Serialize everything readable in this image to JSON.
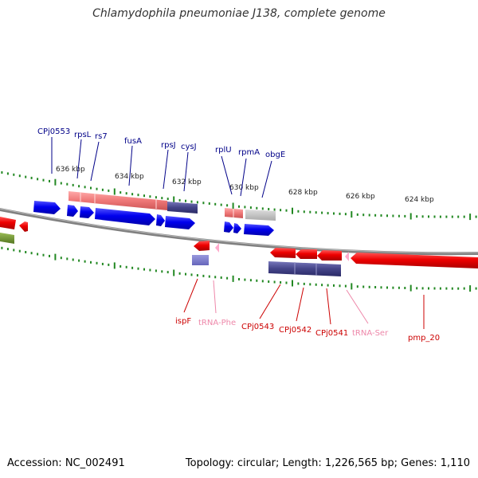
{
  "title": "Chlamydophila pneumoniae J138, complete genome",
  "footer": {
    "accession": "Accession: NC_002491",
    "stats": "Topology: circular; Length: 1,226,565 bp; Genes: 1,110"
  },
  "colors": {
    "backbone": "#808080",
    "tick": "#228822",
    "forward_gene": "#0000ee",
    "reverse_gene": "#ee0000",
    "pink_feature": "#ee7777",
    "purple_feature": "#444488",
    "grey_feature": "#bbbbbb",
    "forward_label": "#000088",
    "reverse_label": "#cc0000",
    "trna_label": "#ee88aa"
  },
  "scale_labels": [
    "636 kbp",
    "634 kbp",
    "632 kbp",
    "630 kbp",
    "628 kbp",
    "626 kbp",
    "624 kbp"
  ],
  "forward_labels": [
    "CPj0553",
    "rpsL",
    "rs7",
    "fusA",
    "rpsJ",
    "cysJ",
    "rplU",
    "rpmA",
    "obgE"
  ],
  "reverse_labels": [
    "ispF",
    "tRNA-Phe",
    "CPj0543",
    "CPj0542",
    "CPj0541",
    "tRNA-Ser",
    "pmp_20"
  ]
}
